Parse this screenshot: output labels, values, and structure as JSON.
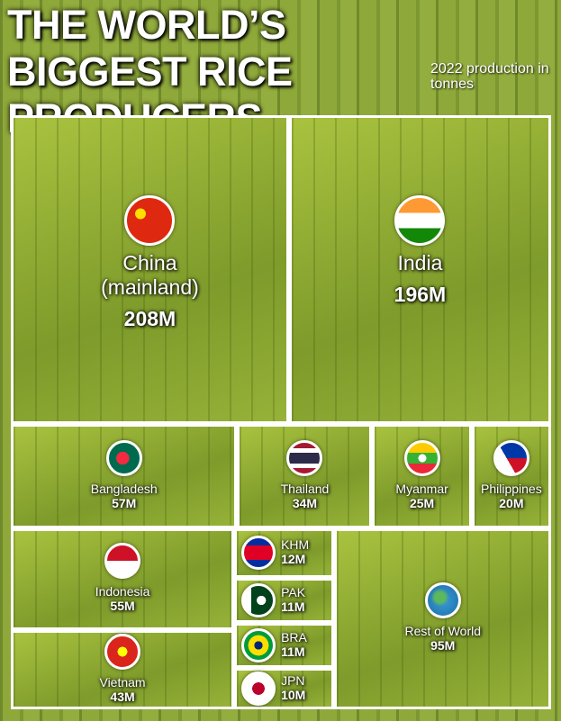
{
  "chart_data": {
    "type": "treemap",
    "title": "THE WORLD’S BIGGEST RICE PRODUCERS",
    "subtitle": "2022 production in tonnes",
    "categories": [
      "China (mainland)",
      "India",
      "Bangladesh",
      "Thailand",
      "Myanmar",
      "Philippines",
      "Indonesia",
      "Vietnam",
      "KHM",
      "PAK",
      "BRA",
      "JPN",
      "Rest of World"
    ],
    "values": [
      208,
      196,
      57,
      34,
      25,
      20,
      55,
      43,
      12,
      11,
      11,
      10,
      95
    ],
    "value_labels": [
      "208M",
      "196M",
      "57M",
      "34M",
      "25M",
      "20M",
      "55M",
      "43M",
      "12M",
      "11M",
      "11M",
      "10M",
      "95M"
    ]
  }
}
